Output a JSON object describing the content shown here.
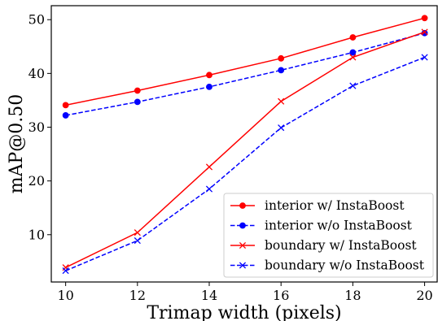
{
  "chart_data": {
    "type": "line",
    "title": "",
    "xlabel": "Trimap width (pixels)",
    "ylabel": "mAP@0.50",
    "x": [
      10,
      12,
      14,
      16,
      18,
      20
    ],
    "xlim": [
      9.6,
      20.35
    ],
    "ylim": [
      1.2,
      52.6
    ],
    "xticks": [
      "10",
      "12",
      "14",
      "16",
      "18",
      "20"
    ],
    "yticks": [
      "10",
      "20",
      "30",
      "40",
      "50"
    ],
    "grid": false,
    "legend_position": "lower-right",
    "series": [
      {
        "name": "interior w/ InstaBoost",
        "color": "#ff0000",
        "linestyle": "solid",
        "marker": "circle",
        "values": [
          34.1,
          36.8,
          39.7,
          42.8,
          46.7,
          50.3
        ]
      },
      {
        "name": "interior w/o InstaBoost",
        "color": "#0000ff",
        "linestyle": "dashed",
        "marker": "circle",
        "values": [
          32.2,
          34.7,
          37.5,
          40.6,
          43.9,
          47.5
        ]
      },
      {
        "name": "boundary w/ InstaBoost",
        "color": "#ff0000",
        "linestyle": "solid",
        "marker": "x",
        "values": [
          3.9,
          10.4,
          22.6,
          34.8,
          43.0,
          47.7
        ]
      },
      {
        "name": "boundary w/o InstaBoost",
        "color": "#0000ff",
        "linestyle": "dashed",
        "marker": "x",
        "values": [
          3.3,
          8.9,
          18.5,
          29.9,
          37.7,
          43.0
        ]
      }
    ]
  }
}
